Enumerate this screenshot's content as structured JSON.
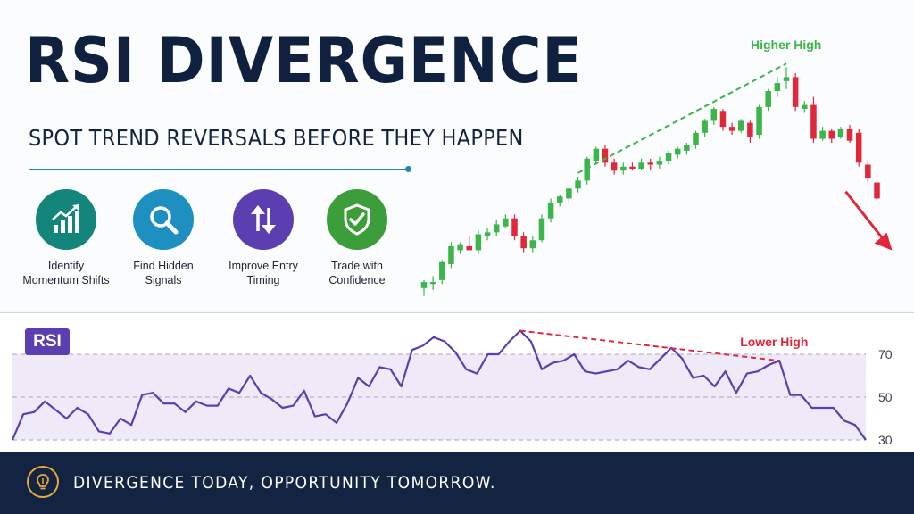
{
  "header": {
    "title": "RSI DIVERGENCE",
    "subtitle": "SPOT TREND REVERSALS BEFORE THEY HAPPEN"
  },
  "features": [
    {
      "icon": "trend-up-bars-icon",
      "line1": "Identify",
      "line2": "Momentum Shifts",
      "color": "#14857a"
    },
    {
      "icon": "magnifier-icon",
      "line1": "Find Hidden",
      "line2": "Signals",
      "color": "#1e8fc1"
    },
    {
      "icon": "up-down-arrows-icon",
      "line1": "Improve Entry",
      "line2": "Timing",
      "color": "#5b3fb0"
    },
    {
      "icon": "shield-check-icon",
      "line1": "Trade with",
      "line2": "Confidence",
      "color": "#3c9e3a"
    }
  ],
  "rsi_badge": "RSI",
  "footer": {
    "icon": "lightbulb-icon",
    "text": "DIVERGENCE TODAY, OPPORTUNITY TOMORROW."
  },
  "colors": {
    "navy": "#132443",
    "bull": "#3cb54a",
    "bear": "#e0283a",
    "rsi_line": "#5b3fb0",
    "higher_high": "#3cb54a",
    "lower_high": "#e0283a"
  },
  "chart_data": [
    {
      "type": "candlestick",
      "annotation": "Higher High",
      "bullish_color": "#3cb54a",
      "bearish_color": "#e0283a",
      "candles": [
        {
          "o": 1,
          "h": 5,
          "l": -3,
          "c": 4
        },
        {
          "o": 3,
          "h": 7,
          "l": 0,
          "c": 4
        },
        {
          "o": 5,
          "h": 15,
          "l": 3,
          "c": 14
        },
        {
          "o": 13,
          "h": 24,
          "l": 11,
          "c": 22
        },
        {
          "o": 20,
          "h": 24,
          "l": 18,
          "c": 23
        },
        {
          "o": 22,
          "h": 27,
          "l": 20,
          "c": 20
        },
        {
          "o": 20,
          "h": 30,
          "l": 18,
          "c": 28
        },
        {
          "o": 27,
          "h": 31,
          "l": 25,
          "c": 29
        },
        {
          "o": 29,
          "h": 35,
          "l": 27,
          "c": 33
        },
        {
          "o": 32,
          "h": 38,
          "l": 31,
          "c": 36
        },
        {
          "o": 36,
          "h": 38,
          "l": 25,
          "c": 27
        },
        {
          "o": 27,
          "h": 29,
          "l": 19,
          "c": 21
        },
        {
          "o": 21,
          "h": 27,
          "l": 19,
          "c": 25
        },
        {
          "o": 25,
          "h": 38,
          "l": 24,
          "c": 36
        },
        {
          "o": 36,
          "h": 46,
          "l": 34,
          "c": 44
        },
        {
          "o": 44,
          "h": 48,
          "l": 42,
          "c": 47
        },
        {
          "o": 46,
          "h": 52,
          "l": 44,
          "c": 51
        },
        {
          "o": 51,
          "h": 57,
          "l": 49,
          "c": 55
        },
        {
          "o": 55,
          "h": 67,
          "l": 53,
          "c": 66
        },
        {
          "o": 65,
          "h": 72,
          "l": 63,
          "c": 71
        },
        {
          "o": 71,
          "h": 73,
          "l": 62,
          "c": 64
        },
        {
          "o": 64,
          "h": 66,
          "l": 58,
          "c": 60
        },
        {
          "o": 60,
          "h": 64,
          "l": 58,
          "c": 62
        },
        {
          "o": 62,
          "h": 64,
          "l": 60,
          "c": 61
        },
        {
          "o": 61,
          "h": 66,
          "l": 60,
          "c": 64
        },
        {
          "o": 64,
          "h": 66,
          "l": 60,
          "c": 63
        },
        {
          "o": 63,
          "h": 67,
          "l": 61,
          "c": 65
        },
        {
          "o": 65,
          "h": 70,
          "l": 63,
          "c": 69
        },
        {
          "o": 68,
          "h": 72,
          "l": 66,
          "c": 71
        },
        {
          "o": 70,
          "h": 74,
          "l": 68,
          "c": 73
        },
        {
          "o": 73,
          "h": 80,
          "l": 71,
          "c": 79
        },
        {
          "o": 79,
          "h": 86,
          "l": 77,
          "c": 85
        },
        {
          "o": 85,
          "h": 92,
          "l": 83,
          "c": 91
        },
        {
          "o": 90,
          "h": 91,
          "l": 80,
          "c": 82
        },
        {
          "o": 82,
          "h": 84,
          "l": 78,
          "c": 80
        },
        {
          "o": 80,
          "h": 86,
          "l": 79,
          "c": 85
        },
        {
          "o": 84,
          "h": 85,
          "l": 74,
          "c": 77
        },
        {
          "o": 78,
          "h": 93,
          "l": 76,
          "c": 92
        },
        {
          "o": 92,
          "h": 101,
          "l": 90,
          "c": 100
        },
        {
          "o": 100,
          "h": 107,
          "l": 97,
          "c": 104
        },
        {
          "o": 105,
          "h": 112,
          "l": 101,
          "c": 107
        },
        {
          "o": 107,
          "h": 109,
          "l": 90,
          "c": 92
        },
        {
          "o": 91,
          "h": 95,
          "l": 89,
          "c": 93
        },
        {
          "o": 93,
          "h": 97,
          "l": 74,
          "c": 76
        },
        {
          "o": 76,
          "h": 82,
          "l": 75,
          "c": 80
        },
        {
          "o": 80,
          "h": 81,
          "l": 74,
          "c": 76
        },
        {
          "o": 77,
          "h": 82,
          "l": 76,
          "c": 81
        },
        {
          "o": 81,
          "h": 83,
          "l": 74,
          "c": 75
        },
        {
          "o": 79,
          "h": 81,
          "l": 62,
          "c": 64
        },
        {
          "o": 63,
          "h": 65,
          "l": 54,
          "c": 56
        },
        {
          "o": 54,
          "h": 55,
          "l": 45,
          "c": 46
        }
      ]
    },
    {
      "type": "line",
      "ylabel": "RSI",
      "yticks": [
        30,
        50,
        70
      ],
      "ylim": [
        30,
        70
      ],
      "annotation": "Lower High",
      "values": [
        30,
        42,
        43,
        48,
        44,
        40,
        45,
        42,
        34,
        33,
        40,
        37,
        51,
        52,
        47,
        47,
        43,
        48,
        46,
        46,
        54,
        52,
        60,
        52,
        49,
        45,
        46,
        53,
        41,
        42,
        38,
        47,
        59,
        55,
        64,
        63,
        55,
        72,
        74,
        78,
        76,
        71,
        63,
        61,
        70,
        70,
        76,
        81,
        76,
        63,
        66,
        67,
        70,
        62,
        61,
        62,
        63,
        67,
        64,
        63,
        68,
        73,
        68,
        59,
        60,
        55,
        62,
        52,
        61,
        62,
        65,
        67,
        51,
        51,
        45,
        45,
        45,
        39,
        37,
        30
      ]
    }
  ]
}
